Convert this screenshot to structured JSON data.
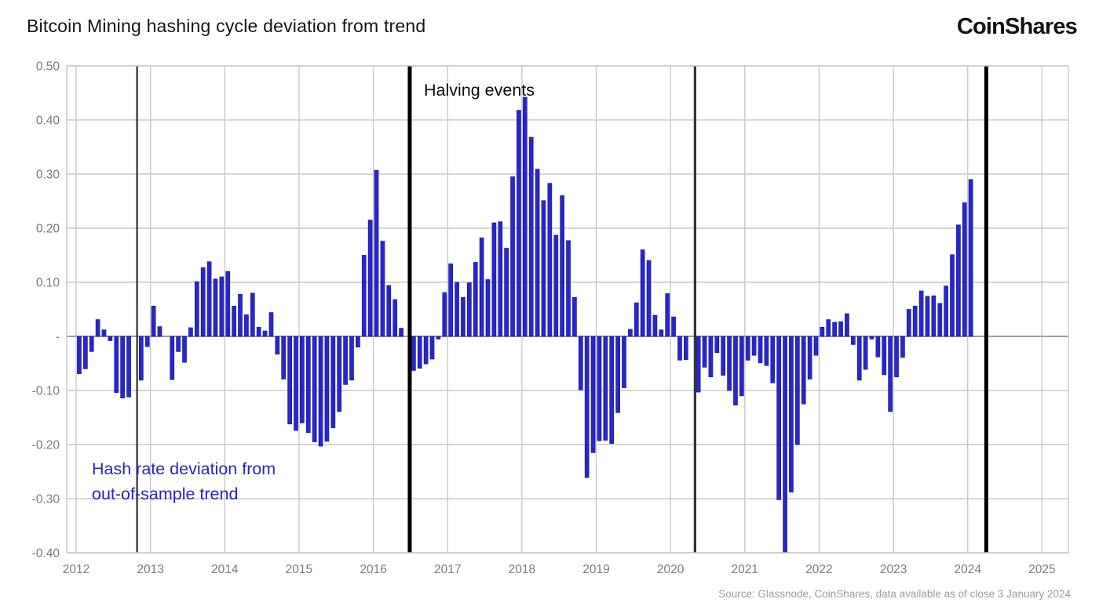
{
  "title": "Bitcoin Mining hashing cycle deviation from trend",
  "logo": "CoinShares",
  "annotations": {
    "halving": "Halving events",
    "hash_line1": "Hash rate deviation from",
    "hash_line2": "out-of-sample trend"
  },
  "source": "Source: Glassnode, CoinShares, data available as of close 3 January 2024",
  "chart_data": {
    "type": "bar",
    "title": "Bitcoin Mining hashing cycle deviation from trend",
    "series_name": "Hash rate deviation from out-of-sample trend",
    "start_month": "2012-01",
    "values": [
      -0.069,
      -0.06,
      -0.028,
      0.031,
      0.012,
      -0.008,
      -0.104,
      -0.114,
      -0.112,
      0.0,
      -0.081,
      -0.019,
      0.056,
      0.018,
      0.0,
      -0.08,
      -0.028,
      -0.048,
      0.016,
      0.101,
      0.127,
      0.138,
      0.106,
      0.11,
      0.12,
      0.056,
      0.078,
      0.04,
      0.08,
      0.017,
      0.01,
      0.044,
      -0.033,
      -0.079,
      -0.162,
      -0.174,
      -0.16,
      -0.178,
      -0.195,
      -0.203,
      -0.194,
      -0.169,
      -0.139,
      -0.089,
      -0.081,
      -0.02,
      0.15,
      0.215,
      0.307,
      0.176,
      0.094,
      0.068,
      0.015,
      0.0,
      -0.063,
      -0.059,
      -0.051,
      -0.042,
      -0.005,
      0.081,
      0.134,
      0.1,
      0.072,
      0.099,
      0.137,
      0.182,
      0.105,
      0.21,
      0.212,
      0.163,
      0.295,
      0.418,
      0.442,
      0.368,
      0.309,
      0.251,
      0.283,
      0.187,
      0.26,
      0.177,
      0.072,
      -0.099,
      -0.261,
      -0.215,
      -0.193,
      -0.192,
      -0.198,
      -0.141,
      -0.095,
      0.013,
      0.062,
      0.16,
      0.14,
      0.039,
      0.012,
      0.079,
      0.036,
      -0.044,
      -0.043,
      0.0,
      -0.103,
      -0.057,
      -0.075,
      -0.03,
      -0.072,
      -0.1,
      -0.127,
      -0.11,
      -0.044,
      -0.035,
      -0.049,
      -0.054,
      -0.086,
      -0.302,
      -0.405,
      -0.288,
      -0.2,
      -0.125,
      -0.079,
      -0.035,
      0.017,
      0.031,
      0.026,
      0.027,
      0.042,
      -0.015,
      -0.081,
      -0.061,
      -0.005,
      -0.038,
      -0.071,
      -0.139,
      -0.075,
      -0.039,
      0.05,
      0.056,
      0.084,
      0.074,
      0.075,
      0.061,
      0.093,
      0.151,
      0.206,
      0.247,
      0.29
    ],
    "halving_lines": [
      {
        "label": "Halving Nov 2012",
        "pos": 2012.82,
        "width": 2,
        "color": "#1a1a1a"
      },
      {
        "label": "Halving Jul 2016",
        "pos": 2016.49,
        "width": 5,
        "color": "#000000"
      },
      {
        "label": "Halving May 2020",
        "pos": 2020.33,
        "width": 3.2,
        "color": "#333333"
      },
      {
        "label": "Halving Apr 2024",
        "pos": 2024.25,
        "width": 5,
        "color": "#000000"
      }
    ],
    "ylim": [
      -0.4,
      0.5
    ],
    "ytick_labels": [
      "0.50",
      "0.40",
      "0.30",
      "0.20",
      "0.10",
      "-",
      "-0.10",
      "-0.20",
      "-0.30",
      "-0.40"
    ],
    "ytick_values": [
      0.5,
      0.4,
      0.3,
      0.2,
      0.1,
      0.0,
      -0.1,
      -0.2,
      -0.3,
      -0.4
    ],
    "xtick_years": [
      2012,
      2013,
      2014,
      2015,
      2016,
      2017,
      2018,
      2019,
      2020,
      2021,
      2022,
      2023,
      2024,
      2025
    ],
    "grid": true,
    "bar_color": "#2827cd",
    "bar_edge_color": "#1b1a96",
    "grid_color": "#c9c9c9",
    "zero_line_color": "#9e9e9e",
    "axis_label_color": "#7a7a7a"
  }
}
